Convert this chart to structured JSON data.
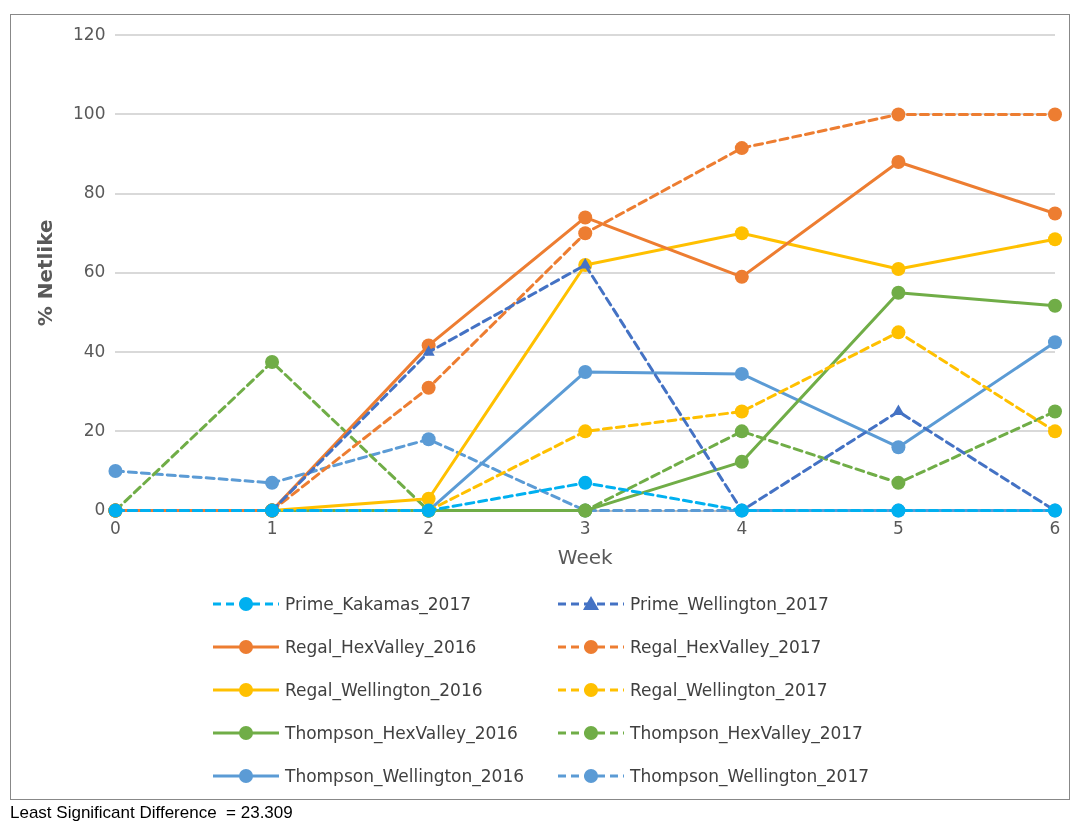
{
  "chart_data": {
    "type": "line",
    "xlabel": "Week",
    "ylabel": "% Netlike",
    "x": [
      0,
      1,
      2,
      3,
      4,
      5,
      6
    ],
    "xlim": [
      0,
      6
    ],
    "xticks": [
      0,
      1,
      2,
      3,
      4,
      5,
      6
    ],
    "ylim": [
      0,
      120
    ],
    "yticks": [
      0,
      20,
      40,
      60,
      80,
      100,
      120
    ],
    "grid": "y",
    "legend": "bottom",
    "marker": "circle",
    "line_style": "solid",
    "annotations": [
      "Least Significant Difference  = 23.309"
    ],
    "series": [
      {
        "name": "Prime_Kakamas_2017",
        "color": "#00b0f0",
        "line_style": "dashed",
        "values": [
          0,
          0,
          0,
          7,
          0,
          0,
          0
        ]
      },
      {
        "name": "Prime_Wellington_2017",
        "color": "#4472c4",
        "line_style": "dashed",
        "marker": "triangle",
        "values": [
          0,
          0,
          40,
          62,
          0,
          25,
          0
        ]
      },
      {
        "name": "Regal_HexValley_2016",
        "color": "#ed7d31",
        "values": [
          0,
          0,
          41.7,
          74,
          59,
          88,
          75
        ]
      },
      {
        "name": "Regal_HexValley_2017",
        "color": "#ed7d31",
        "line_style": "dashed",
        "values": [
          0,
          0,
          31,
          70,
          91.5,
          100,
          100
        ]
      },
      {
        "name": "Regal_Wellington_2016",
        "color": "#ffc000",
        "values": [
          0,
          0,
          3,
          62,
          70,
          61,
          68.5
        ]
      },
      {
        "name": "Regal_Wellington_2017",
        "color": "#ffc000",
        "line_style": "dashed",
        "values": [
          0,
          0,
          0,
          20,
          25,
          45,
          20
        ]
      },
      {
        "name": "Thompson_HexValley_2016",
        "color": "#70ad47",
        "values": [
          0,
          0,
          0,
          0,
          12.3,
          55,
          51.7
        ]
      },
      {
        "name": "Thompson_HexValley_2017",
        "color": "#70ad47",
        "line_style": "dashed",
        "values": [
          0,
          37.5,
          0,
          0,
          20,
          7,
          25
        ]
      },
      {
        "name": "Thompson_Wellington_2016",
        "color": "#5b9bd5",
        "values": [
          0,
          0,
          0,
          35,
          34.5,
          16,
          42.5
        ]
      },
      {
        "name": "Thompson_Wellington_2017",
        "color": "#5b9bd5",
        "line_style": "dashed",
        "values": [
          10,
          7,
          18,
          0,
          0,
          0,
          0
        ]
      }
    ]
  }
}
